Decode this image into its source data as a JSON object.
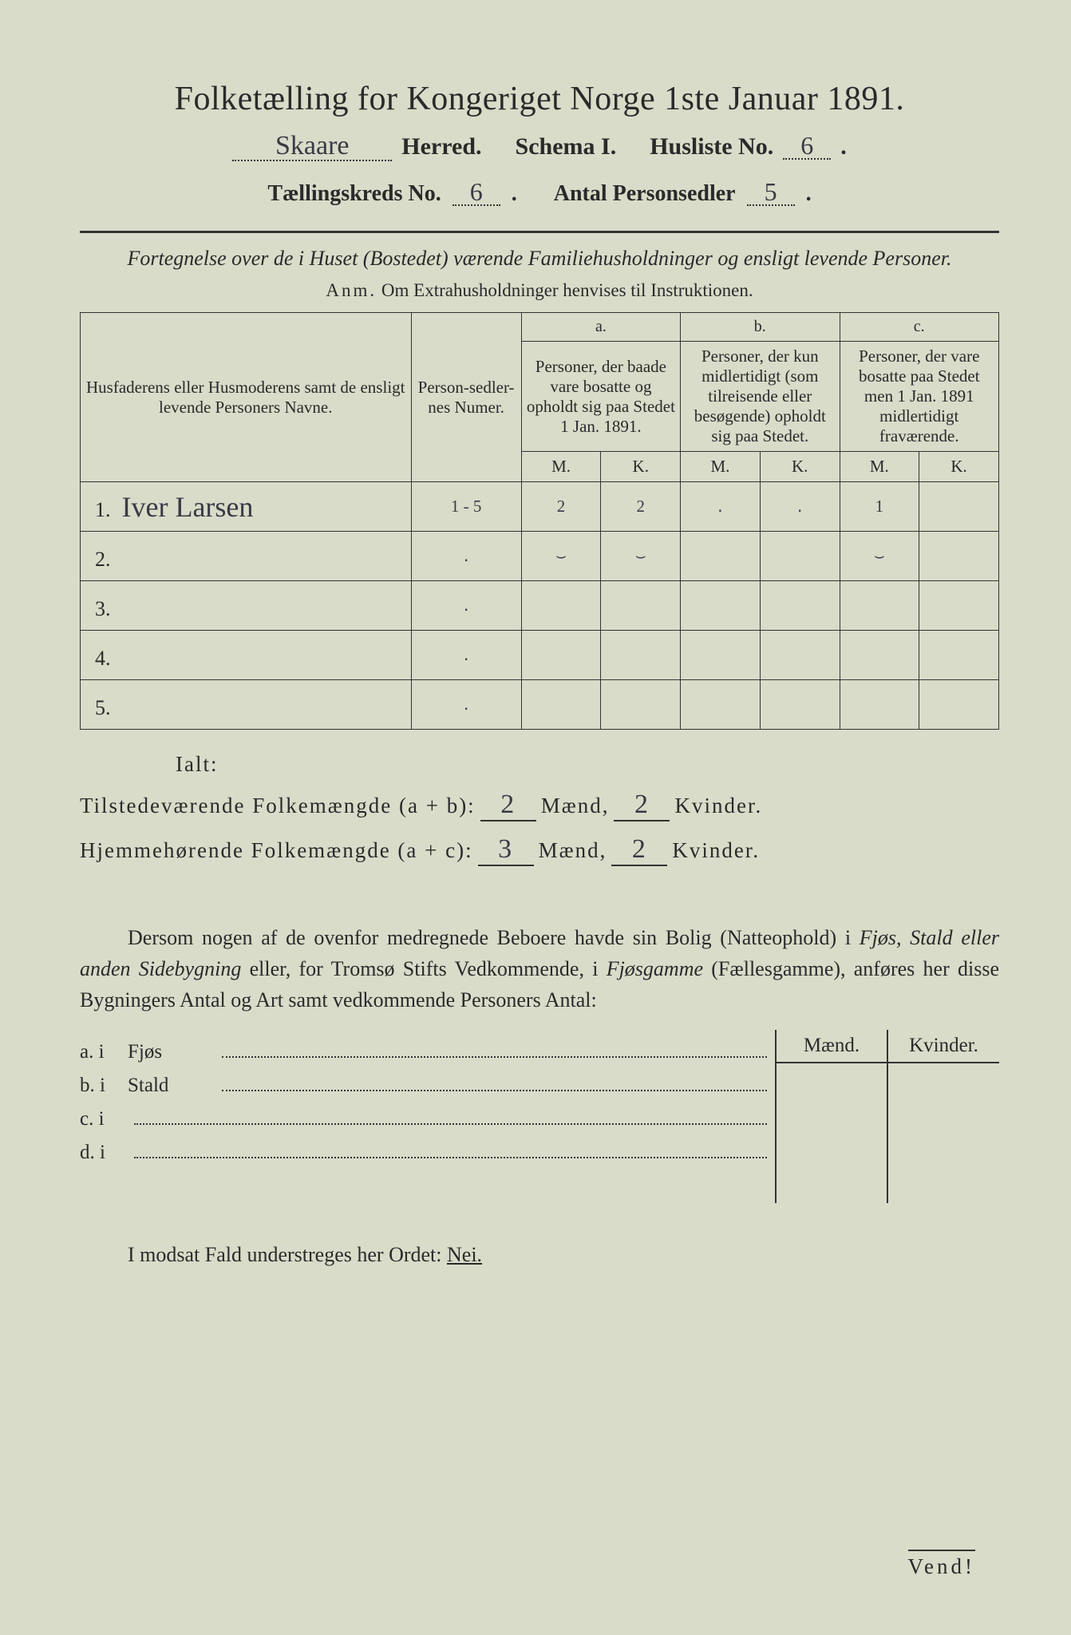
{
  "title": "Folketælling for Kongeriget Norge 1ste Januar 1891.",
  "header": {
    "herred_value": "Skaare",
    "herred_label": "Herred.",
    "schema_label": "Schema I.",
    "husliste_label": "Husliste No.",
    "husliste_value": "6",
    "kreds_label": "Tællingskreds No.",
    "kreds_value": "6",
    "antal_label": "Antal Personsedler",
    "antal_value": "5"
  },
  "intro": {
    "line": "Fortegnelse over de i Huset (Bostedet) værende Familiehusholdninger og ensligt levende Personer.",
    "anm_label": "Anm.",
    "anm_text": "Om Extrahusholdninger henvises til Instruktionen."
  },
  "table": {
    "col_name": "Husfaderens eller Husmoderens samt de ensligt levende Personers Navne.",
    "col_num": "Person-sedler-nes Numer.",
    "a_label": "a.",
    "a_text": "Personer, der baade vare bosatte og opholdt sig paa Stedet 1 Jan. 1891.",
    "b_label": "b.",
    "b_text": "Personer, der kun midlertidigt (som tilreisende eller besøgende) opholdt sig paa Stedet.",
    "c_label": "c.",
    "c_text": "Personer, der vare bosatte paa Stedet men 1 Jan. 1891 midlertidigt fraværende.",
    "M": "M.",
    "K": "K.",
    "rows": [
      {
        "n": "1.",
        "name": "Iver Larsen",
        "num": "1 - 5",
        "aM": "2",
        "aK": "2",
        "bM": "․",
        "bK": "․",
        "cM": "1",
        "cK": ""
      },
      {
        "n": "2.",
        "name": "",
        "num": "․",
        "aM": "⌣",
        "aK": "⌣",
        "bM": "",
        "bK": "",
        "cM": "⌣",
        "cK": ""
      },
      {
        "n": "3.",
        "name": "",
        "num": "․",
        "aM": "",
        "aK": "",
        "bM": "",
        "bK": "",
        "cM": "",
        "cK": ""
      },
      {
        "n": "4.",
        "name": "",
        "num": "․",
        "aM": "",
        "aK": "",
        "bM": "",
        "bK": "",
        "cM": "",
        "cK": ""
      },
      {
        "n": "5.",
        "name": "",
        "num": "․",
        "aM": "",
        "aK": "",
        "bM": "",
        "bK": "",
        "cM": "",
        "cK": ""
      }
    ]
  },
  "totals": {
    "ialt": "Ialt:",
    "line1_label": "Tilstedeværende Folkemængde (a + b):",
    "line2_label": "Hjemmehørende Folkemængde (a + c):",
    "maend": "Mænd,",
    "kvinder": "Kvinder.",
    "v1m": "2",
    "v1k": "2",
    "v2m": "3",
    "v2k": "2"
  },
  "para": "Dersom nogen af de ovenfor medregnede Beboere havde sin Bolig (Natteophold) i Fjøs, Stald eller anden Sidebygning eller, for Tromsø Stifts Vedkommende, i Fjøsgamme (Fællesgamme), anføres her disse Bygningers Antal og Art samt vedkommende Personers Antal:",
  "lower": {
    "maend": "Mænd.",
    "kvinder": "Kvinder.",
    "a": "a.  i",
    "a2": "Fjøs",
    "b": "b.  i",
    "b2": "Stald",
    "c": "c.  i",
    "d": "d.  i"
  },
  "modsat": {
    "pre": "I modsat Fald understreges her Ordet: ",
    "nej": "Nei."
  },
  "vend": "Vend!"
}
